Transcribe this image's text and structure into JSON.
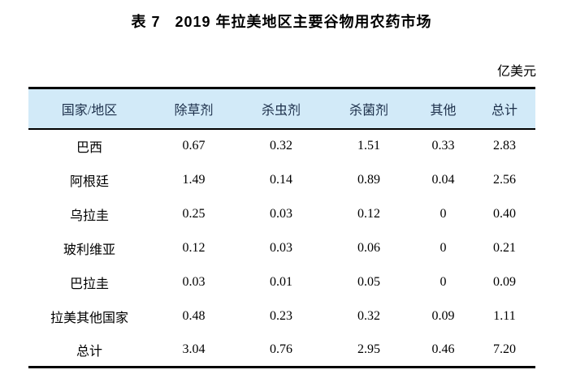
{
  "title": "表 7   2019 年拉美地区主要谷物用农药市场",
  "unit_label": "亿美元",
  "colors": {
    "header_bg": "#d2eaf8",
    "header_text": "#1c2f4a",
    "rule": "#000000"
  },
  "chart_data": {
    "type": "table",
    "title": "表 7 2019 年拉美地区主要谷物用农药市场",
    "unit": "亿美元",
    "columns": [
      "国家/地区",
      "除草剂",
      "杀虫剂",
      "杀菌剂",
      "其他",
      "总计"
    ],
    "rows": [
      {
        "cells": [
          "巴西",
          "0.67",
          "0.32",
          "1.51",
          "0.33",
          "2.83"
        ]
      },
      {
        "cells": [
          "阿根廷",
          "1.49",
          "0.14",
          "0.89",
          "0.04",
          "2.56"
        ]
      },
      {
        "cells": [
          "乌拉圭",
          "0.25",
          "0.03",
          "0.12",
          "0",
          "0.40"
        ]
      },
      {
        "cells": [
          "玻利维亚",
          "0.12",
          "0.03",
          "0.06",
          "0",
          "0.21"
        ]
      },
      {
        "cells": [
          "巴拉圭",
          "0.03",
          "0.01",
          "0.05",
          "0",
          "0.09"
        ]
      },
      {
        "cells": [
          "拉美其他国家",
          "0.48",
          "0.23",
          "0.32",
          "0.09",
          "1.11"
        ]
      },
      {
        "cells": [
          "总计",
          "3.04",
          "0.76",
          "2.95",
          "0.46",
          "7.20"
        ]
      }
    ]
  }
}
